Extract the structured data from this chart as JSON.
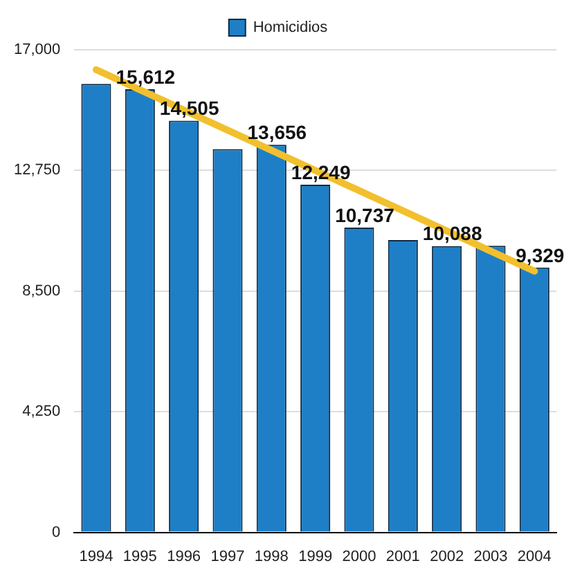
{
  "chart_data": {
    "type": "bar",
    "categories": [
      "1994",
      "1995",
      "1996",
      "1997",
      "1998",
      "1999",
      "2000",
      "2001",
      "2002",
      "2003",
      "2004"
    ],
    "series": [
      {
        "name": "Homicidios",
        "color": "#1e7fc6",
        "values": [
          15800,
          15612,
          14505,
          13500,
          13656,
          12249,
          10737,
          10300,
          10088,
          10100,
          9329
        ],
        "value_labels": [
          null,
          "15,612",
          "14,505",
          null,
          "13,656",
          "12,249",
          "10,737",
          null,
          "10,088",
          null,
          "9,329"
        ]
      },
      {
        "type": "line",
        "color": "#f2c02e",
        "values": [
          16300,
          null,
          null,
          null,
          null,
          null,
          null,
          null,
          null,
          null,
          9200
        ]
      }
    ],
    "ylim": [
      0,
      17000
    ],
    "yticks": [
      0,
      {
        "value": 4250,
        "label": "4,250"
      },
      {
        "value": 8500,
        "label": "8,500"
      },
      {
        "value": 12750,
        "label": "12,750"
      },
      {
        "value": 17000,
        "label": "17,000"
      }
    ],
    "grid": "y",
    "legend": "top"
  }
}
